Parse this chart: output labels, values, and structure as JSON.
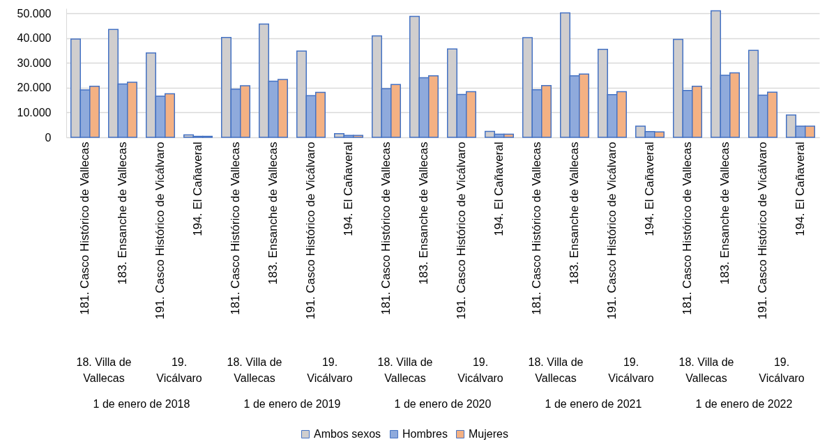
{
  "chart_data": {
    "type": "bar",
    "categories": [
      "181. Casco Histórico de Vallecas",
      "183. Ensanche de Vallecas",
      "191. Casco Histórico de Vicálvaro",
      "194. El Cañaveral",
      "181. Casco Histórico de Vallecas",
      "183. Ensanche de Vallecas",
      "191. Casco Histórico de Vicálvaro",
      "194. El Cañaveral",
      "181. Casco Histórico de Vallecas",
      "183. Ensanche de Vallecas",
      "191. Casco Histórico de Vicálvaro",
      "194. El Cañaveral",
      "181. Casco Histórico de Vallecas",
      "183. Ensanche de Vallecas",
      "191. Casco Histórico de Vicálvaro",
      "194. El Cañaveral",
      "181. Casco Histórico de Vallecas",
      "183. Ensanche de Vallecas",
      "191. Casco Histórico de Vicálvaro",
      "194. El Cañaveral"
    ],
    "series": [
      {
        "name": "Ambos sexos",
        "color": "#d0cece",
        "values": [
          39600,
          43500,
          34000,
          1000,
          40300,
          45700,
          34800,
          1500,
          40900,
          48800,
          35600,
          2400,
          40200,
          50200,
          35500,
          4500,
          39500,
          51000,
          35100,
          9000
        ]
      },
      {
        "name": "Hombres",
        "color": "#8faadc",
        "values": [
          19100,
          21500,
          16600,
          400,
          19400,
          22600,
          16800,
          800,
          19600,
          24000,
          17300,
          1300,
          19200,
          24800,
          17200,
          2300,
          18900,
          25000,
          17000,
          4500
        ]
      },
      {
        "name": "Mujeres",
        "color": "#f4b183",
        "values": [
          20600,
          22200,
          17600,
          400,
          20800,
          23300,
          18100,
          800,
          21300,
          24800,
          18400,
          1300,
          20900,
          25500,
          18400,
          2200,
          20600,
          26000,
          18200,
          4500
        ]
      }
    ],
    "ylim": [
      0,
      52000
    ],
    "yticks": [
      0,
      {
        "value": 10000,
        "label": "10.000"
      },
      {
        "value": 20000,
        "label": "20.000"
      },
      {
        "value": 30000,
        "label": "30.000"
      },
      {
        "value": 40000,
        "label": "40.000"
      },
      {
        "value": 50000,
        "label": "50.000"
      }
    ],
    "grid": "y",
    "legend": "bottom",
    "annotations": [
      "18. Villa de Vallecas",
      "19. Vicálvaro",
      "18. Villa de Vallecas",
      "19. Vicálvaro",
      "18. Villa de Vallecas",
      "19. Vicálvaro",
      "18. Villa de Vallecas",
      "19. Vicálvaro",
      "18. Villa de Vallecas",
      "19. Vicálvaro",
      "1 de enero de 2018",
      "1 de enero de 2019",
      "1 de enero de 2020",
      "1 de enero de 2021",
      "1 de enero de 2022"
    ]
  }
}
